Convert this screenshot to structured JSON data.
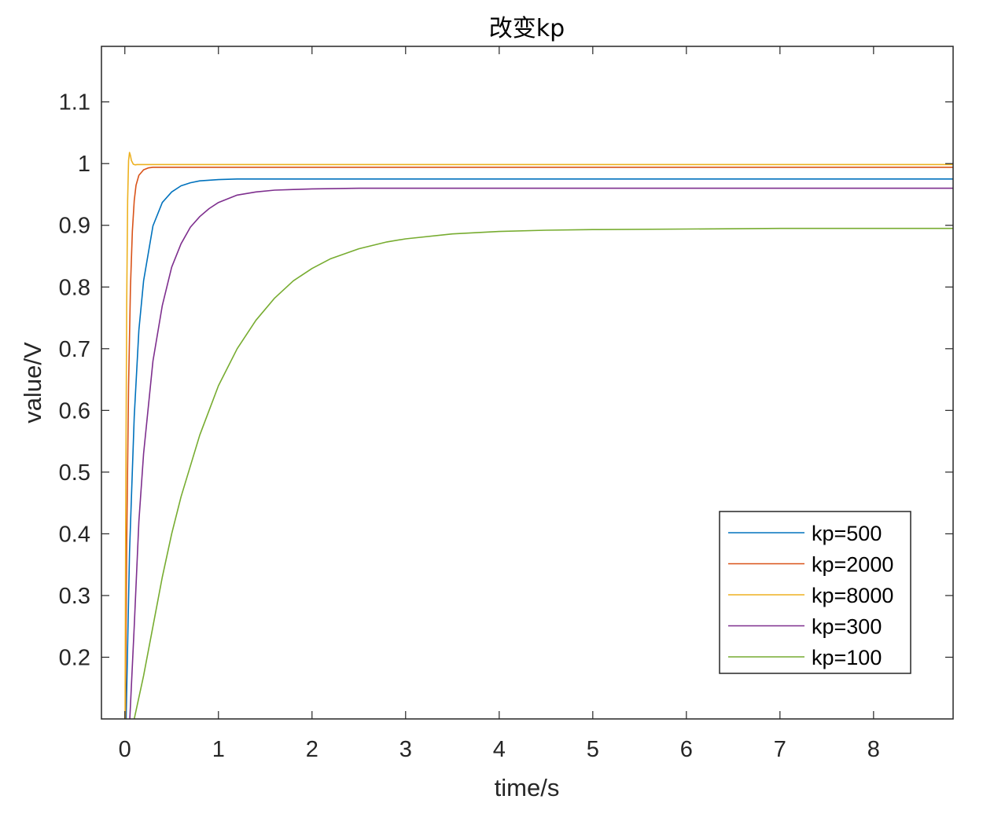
{
  "chart_data": {
    "type": "line",
    "title": "改变kp",
    "xlabel": "time/s",
    "ylabel": "value/V",
    "xlim": [
      -0.25,
      8.85
    ],
    "ylim": [
      0.1,
      1.19
    ],
    "xticks": [
      0,
      1,
      2,
      3,
      4,
      5,
      6,
      7,
      8
    ],
    "xtick_labels": [
      "0",
      "1",
      "2",
      "3",
      "4",
      "5",
      "6",
      "7",
      "8"
    ],
    "yticks": [
      0.2,
      0.3,
      0.4,
      0.5,
      0.6,
      0.7,
      0.8,
      0.9,
      1.0,
      1.1
    ],
    "ytick_labels": [
      "0.2",
      "0.3",
      "0.4",
      "0.5",
      "0.6",
      "0.7",
      "0.8",
      "0.9",
      "1",
      "1.1"
    ],
    "grid": false,
    "box": true,
    "legend_position": "bottom-right",
    "series": [
      {
        "name": "kp=500",
        "color": "#0072BD",
        "x": [
          0,
          0.05,
          0.1,
          0.15,
          0.2,
          0.3,
          0.4,
          0.5,
          0.6,
          0.7,
          0.8,
          1.0,
          1.2,
          1.5,
          2,
          3,
          5,
          8.85
        ],
        "y": [
          0,
          0.37,
          0.59,
          0.73,
          0.81,
          0.899,
          0.937,
          0.954,
          0.964,
          0.969,
          0.972,
          0.974,
          0.975,
          0.975,
          0.975,
          0.975,
          0.975,
          0.975
        ]
      },
      {
        "name": "kp=2000",
        "color": "#D95319",
        "x": [
          0,
          0.02,
          0.04,
          0.06,
          0.08,
          0.1,
          0.12,
          0.15,
          0.2,
          0.25,
          0.3,
          0.5,
          1,
          8.85
        ],
        "y": [
          0,
          0.38,
          0.64,
          0.8,
          0.89,
          0.94,
          0.965,
          0.981,
          0.99,
          0.993,
          0.994,
          0.994,
          0.994,
          0.994
        ]
      },
      {
        "name": "kp=8000",
        "color": "#EDB120",
        "x": [
          0,
          0.01,
          0.02,
          0.03,
          0.04,
          0.05,
          0.06,
          0.07,
          0.09,
          0.11,
          0.13,
          0.2,
          0.5,
          8.85
        ],
        "y": [
          0,
          0.45,
          0.77,
          0.94,
          1.005,
          1.018,
          1.013,
          1.005,
          0.999,
          0.998,
          0.9985,
          0.9985,
          0.9985,
          0.9985
        ]
      },
      {
        "name": "kp=300",
        "color": "#7E2F8E",
        "x": [
          0,
          0.05,
          0.1,
          0.15,
          0.2,
          0.3,
          0.4,
          0.5,
          0.6,
          0.7,
          0.8,
          0.9,
          1.0,
          1.2,
          1.4,
          1.6,
          1.8,
          2.0,
          2.5,
          3,
          5,
          8.85
        ],
        "y": [
          0,
          0.09,
          0.25,
          0.42,
          0.53,
          0.68,
          0.77,
          0.832,
          0.87,
          0.897,
          0.914,
          0.927,
          0.937,
          0.949,
          0.954,
          0.957,
          0.958,
          0.959,
          0.96,
          0.96,
          0.96,
          0.96
        ]
      },
      {
        "name": "kp=100",
        "color": "#77AC30",
        "x": [
          0,
          0.1,
          0.2,
          0.3,
          0.4,
          0.5,
          0.6,
          0.8,
          1.0,
          1.2,
          1.4,
          1.6,
          1.8,
          2.0,
          2.2,
          2.5,
          2.8,
          3.0,
          3.5,
          4.0,
          4.5,
          5,
          6,
          7,
          8,
          8.85
        ],
        "y": [
          0,
          0.1,
          0.17,
          0.25,
          0.33,
          0.4,
          0.46,
          0.56,
          0.64,
          0.7,
          0.746,
          0.782,
          0.81,
          0.83,
          0.846,
          0.862,
          0.873,
          0.878,
          0.886,
          0.89,
          0.892,
          0.893,
          0.894,
          0.895,
          0.895,
          0.895
        ]
      }
    ]
  }
}
